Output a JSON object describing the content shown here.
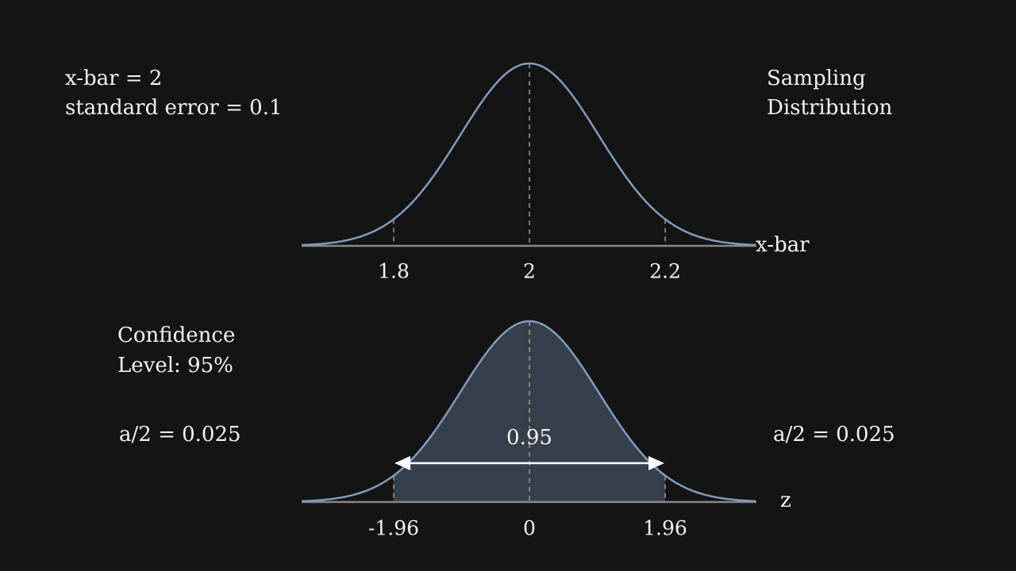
{
  "top": {
    "annotation": [
      "x-bar = 2",
      "standard error = 0.1"
    ],
    "title": [
      "Sampling",
      "Distribution"
    ],
    "axis_label": "x-bar",
    "ticks": [
      "1.8",
      "2",
      "2.2"
    ]
  },
  "bottom": {
    "title": [
      "Confidence",
      "Level: 95%"
    ],
    "left_tail": "a/2 = 0.025",
    "right_tail": "a/2 = 0.025",
    "center_label": "0.95",
    "axis_label": "z",
    "ticks": [
      "-1.96",
      "0",
      "1.96"
    ]
  }
}
